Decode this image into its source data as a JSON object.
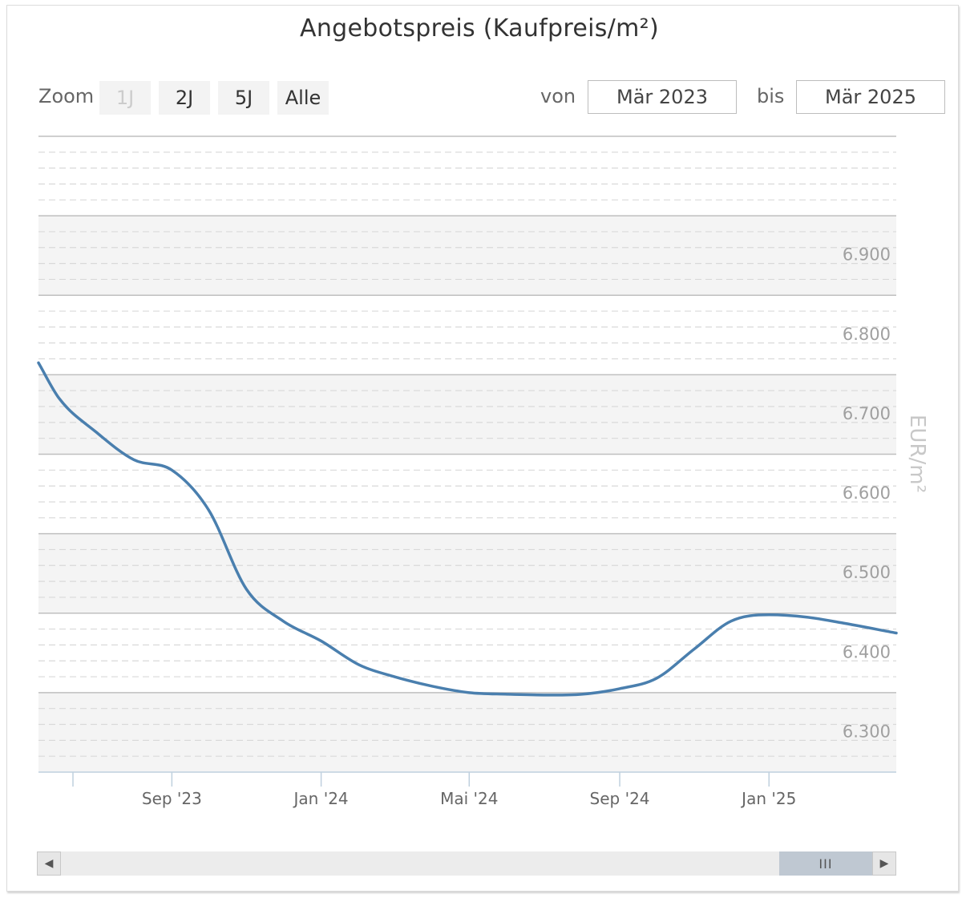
{
  "title": "Angebotspreis (Kaufpreis/m²)",
  "zoom": {
    "label": "Zoom",
    "buttons": [
      {
        "label": "1J",
        "disabled": true
      },
      {
        "label": "2J",
        "disabled": false
      },
      {
        "label": "5J",
        "disabled": false
      },
      {
        "label": "Alle",
        "disabled": false
      }
    ]
  },
  "range": {
    "from_label": "von",
    "from_value": "Mär 2023",
    "to_label": "bis",
    "to_value": "Mär 2025"
  },
  "scrollbar": {
    "left_icon": "arrow-left-icon",
    "right_icon": "arrow-right-icon",
    "thumb_icon": "grip-icon"
  },
  "colors": {
    "line": "#4a7fae",
    "band": "#f4f4f4",
    "grid_major": "#bfbfbf",
    "grid_minor": "#d9d9d9",
    "tick_label": "#a0a0a0",
    "axis_title": "#c8c8c8",
    "x_axis": "#bfd0de"
  },
  "chart_data": {
    "type": "line",
    "title": "Angebotspreis (Kaufpreis/m²)",
    "ylabel": "EUR/m²",
    "xlabel": "",
    "ylim": [
      6250,
      7050
    ],
    "y_tick_labels": [
      "6.300",
      "6.400",
      "6.500",
      "6.600",
      "6.700",
      "6.800",
      "6.900"
    ],
    "y_ticks": [
      6300,
      6400,
      6500,
      6600,
      6700,
      6800,
      6900
    ],
    "x_tick_labels": [
      "Sep '23",
      "Jan '24",
      "Mai '24",
      "Sep '24",
      "Jan '25"
    ],
    "x_tick_dates": [
      "2023-09-01",
      "2024-01-01",
      "2024-05-01",
      "2024-09-01",
      "2025-01-01"
    ],
    "xlim": [
      "2023-05-15",
      "2025-04-15"
    ],
    "grid": true,
    "series": [
      {
        "points": [
          {
            "x": "2023-05-15",
            "y": 6765
          },
          {
            "x": "2023-06-01",
            "y": 6720
          },
          {
            "x": "2023-07-01",
            "y": 6678
          },
          {
            "x": "2023-08-01",
            "y": 6643
          },
          {
            "x": "2023-09-01",
            "y": 6630
          },
          {
            "x": "2023-10-01",
            "y": 6580
          },
          {
            "x": "2023-11-01",
            "y": 6480
          },
          {
            "x": "2023-12-01",
            "y": 6440
          },
          {
            "x": "2024-01-01",
            "y": 6415
          },
          {
            "x": "2024-02-01",
            "y": 6385
          },
          {
            "x": "2024-03-01",
            "y": 6370
          },
          {
            "x": "2024-04-01",
            "y": 6358
          },
          {
            "x": "2024-05-01",
            "y": 6350
          },
          {
            "x": "2024-06-01",
            "y": 6348
          },
          {
            "x": "2024-07-01",
            "y": 6347
          },
          {
            "x": "2024-08-01",
            "y": 6348
          },
          {
            "x": "2024-09-01",
            "y": 6355
          },
          {
            "x": "2024-10-01",
            "y": 6368
          },
          {
            "x": "2024-11-01",
            "y": 6405
          },
          {
            "x": "2024-12-01",
            "y": 6440
          },
          {
            "x": "2025-01-01",
            "y": 6448
          },
          {
            "x": "2025-02-01",
            "y": 6445
          },
          {
            "x": "2025-03-01",
            "y": 6438
          },
          {
            "x": "2025-04-15",
            "y": 6425
          }
        ]
      }
    ]
  }
}
